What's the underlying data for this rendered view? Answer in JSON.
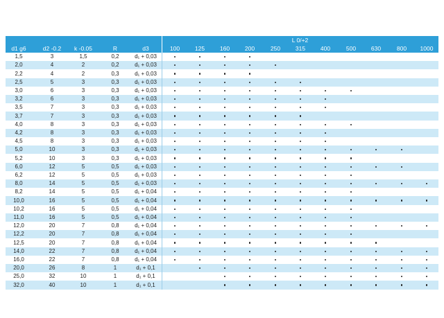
{
  "table": {
    "group_header": "L 0/+2",
    "columns": [
      "d1 g6",
      "d2 -0.2",
      "k -0.05",
      "R",
      "d3",
      "100",
      "125",
      "160",
      "200",
      "250",
      "315",
      "400",
      "500",
      "630",
      "800",
      "1000"
    ],
    "rows": [
      {
        "cells": [
          "1,5",
          "3",
          "1,5",
          "0,2",
          "d₁ + 0,03"
        ],
        "available": [
          true,
          true,
          true,
          true,
          false,
          false,
          false,
          false,
          false,
          false,
          false
        ]
      },
      {
        "cells": [
          "2,0",
          "4",
          "2",
          "0,2",
          "d₁ + 0,03"
        ],
        "available": [
          true,
          true,
          true,
          true,
          true,
          false,
          false,
          false,
          false,
          false,
          false
        ]
      },
      {
        "cells": [
          "2,2",
          "4",
          "2",
          "0,3",
          "d₁ + 0,03"
        ],
        "available": [
          true,
          true,
          true,
          true,
          false,
          false,
          false,
          false,
          false,
          false,
          false
        ]
      },
      {
        "cells": [
          "2,5",
          "5",
          "3",
          "0,3",
          "d₁ + 0,03"
        ],
        "available": [
          true,
          true,
          true,
          true,
          true,
          true,
          false,
          false,
          false,
          false,
          false
        ]
      },
      {
        "cells": [
          "3,0",
          "6",
          "3",
          "0,3",
          "d₁ + 0,03"
        ],
        "available": [
          true,
          true,
          true,
          true,
          true,
          true,
          true,
          true,
          false,
          false,
          false
        ]
      },
      {
        "cells": [
          "3,2",
          "6",
          "3",
          "0,3",
          "d₁ + 0,03"
        ],
        "available": [
          true,
          true,
          true,
          true,
          true,
          true,
          true,
          false,
          false,
          false,
          false
        ]
      },
      {
        "cells": [
          "3,5",
          "7",
          "3",
          "0,3",
          "d₁ + 0,03"
        ],
        "available": [
          true,
          true,
          true,
          true,
          true,
          true,
          true,
          false,
          false,
          false,
          false
        ]
      },
      {
        "cells": [
          "3,7",
          "7",
          "3",
          "0,3",
          "d₁ + 0,03"
        ],
        "available": [
          true,
          true,
          true,
          true,
          true,
          true,
          false,
          false,
          false,
          false,
          false
        ]
      },
      {
        "cells": [
          "4,0",
          "8",
          "3",
          "0,3",
          "d₁ + 0,03"
        ],
        "available": [
          true,
          true,
          true,
          true,
          true,
          true,
          true,
          true,
          false,
          false,
          false
        ]
      },
      {
        "cells": [
          "4,2",
          "8",
          "3",
          "0,3",
          "d₁ + 0,03"
        ],
        "available": [
          true,
          true,
          true,
          true,
          true,
          true,
          true,
          false,
          false,
          false,
          false
        ]
      },
      {
        "cells": [
          "4,5",
          "8",
          "3",
          "0,3",
          "d₁ + 0,03"
        ],
        "available": [
          true,
          true,
          true,
          true,
          true,
          true,
          true,
          false,
          false,
          false,
          false
        ]
      },
      {
        "cells": [
          "5,0",
          "10",
          "3",
          "0,3",
          "d₁ + 0,03"
        ],
        "available": [
          true,
          true,
          true,
          true,
          true,
          true,
          true,
          true,
          true,
          true,
          false
        ]
      },
      {
        "cells": [
          "5,2",
          "10",
          "3",
          "0,3",
          "d₁ + 0,03"
        ],
        "available": [
          true,
          true,
          true,
          true,
          true,
          true,
          true,
          true,
          false,
          false,
          false
        ]
      },
      {
        "cells": [
          "6,0",
          "12",
          "5",
          "0,5",
          "d₁ + 0,03"
        ],
        "available": [
          true,
          true,
          true,
          true,
          true,
          true,
          true,
          true,
          true,
          true,
          false
        ]
      },
      {
        "cells": [
          "6,2",
          "12",
          "5",
          "0,5",
          "d₁ + 0,03"
        ],
        "available": [
          true,
          true,
          true,
          true,
          true,
          true,
          true,
          true,
          false,
          false,
          false
        ]
      },
      {
        "cells": [
          "8,0",
          "14",
          "5",
          "0,5",
          "d₁ + 0,03"
        ],
        "available": [
          true,
          true,
          true,
          true,
          true,
          true,
          true,
          true,
          true,
          true,
          true
        ]
      },
      {
        "cells": [
          "8,2",
          "14",
          "5",
          "0,5",
          "d₁ + 0,04"
        ],
        "available": [
          true,
          true,
          true,
          true,
          true,
          true,
          true,
          true,
          false,
          false,
          false
        ]
      },
      {
        "cells": [
          "10,0",
          "16",
          "5",
          "0,5",
          "d₁ + 0,04"
        ],
        "available": [
          true,
          true,
          true,
          true,
          true,
          true,
          true,
          true,
          true,
          true,
          true
        ]
      },
      {
        "cells": [
          "10,2",
          "16",
          "5",
          "0,5",
          "d₁ + 0,04"
        ],
        "available": [
          true,
          true,
          true,
          true,
          true,
          true,
          true,
          true,
          false,
          false,
          false
        ]
      },
      {
        "cells": [
          "11,0",
          "16",
          "5",
          "0,5",
          "d₁ + 0,04"
        ],
        "available": [
          true,
          true,
          true,
          true,
          true,
          true,
          true,
          true,
          false,
          false,
          false
        ]
      },
      {
        "cells": [
          "12,0",
          "20",
          "7",
          "0,8",
          "d₁ + 0,04"
        ],
        "available": [
          true,
          true,
          true,
          true,
          true,
          true,
          true,
          true,
          true,
          true,
          true
        ]
      },
      {
        "cells": [
          "12,2",
          "20",
          "7",
          "0,8",
          "d₁ + 0,04"
        ],
        "available": [
          true,
          true,
          true,
          true,
          true,
          true,
          true,
          true,
          false,
          false,
          false
        ]
      },
      {
        "cells": [
          "12,5",
          "20",
          "7",
          "0,8",
          "d₁ + 0,04"
        ],
        "available": [
          true,
          true,
          true,
          true,
          true,
          true,
          true,
          true,
          true,
          false,
          false
        ]
      },
      {
        "cells": [
          "14,0",
          "22",
          "7",
          "0,8",
          "d₁ + 0,04"
        ],
        "available": [
          true,
          true,
          true,
          true,
          true,
          true,
          true,
          true,
          true,
          true,
          true
        ]
      },
      {
        "cells": [
          "16,0",
          "22",
          "7",
          "0,8",
          "d₁ + 0,04"
        ],
        "available": [
          true,
          true,
          true,
          true,
          true,
          true,
          true,
          true,
          true,
          true,
          true
        ]
      },
      {
        "cells": [
          "20,0",
          "26",
          "8",
          "1",
          "d₁ + 0,1"
        ],
        "available": [
          false,
          true,
          true,
          true,
          true,
          true,
          true,
          true,
          true,
          true,
          true
        ]
      },
      {
        "cells": [
          "25,0",
          "32",
          "10",
          "1",
          "d₁ + 0,1"
        ],
        "available": [
          false,
          false,
          true,
          true,
          true,
          true,
          true,
          true,
          true,
          true,
          true
        ]
      },
      {
        "cells": [
          "32,0",
          "40",
          "10",
          "1",
          "d₁ + 0,1"
        ],
        "available": [
          false,
          false,
          true,
          true,
          true,
          true,
          true,
          true,
          true,
          true,
          true
        ]
      }
    ]
  }
}
